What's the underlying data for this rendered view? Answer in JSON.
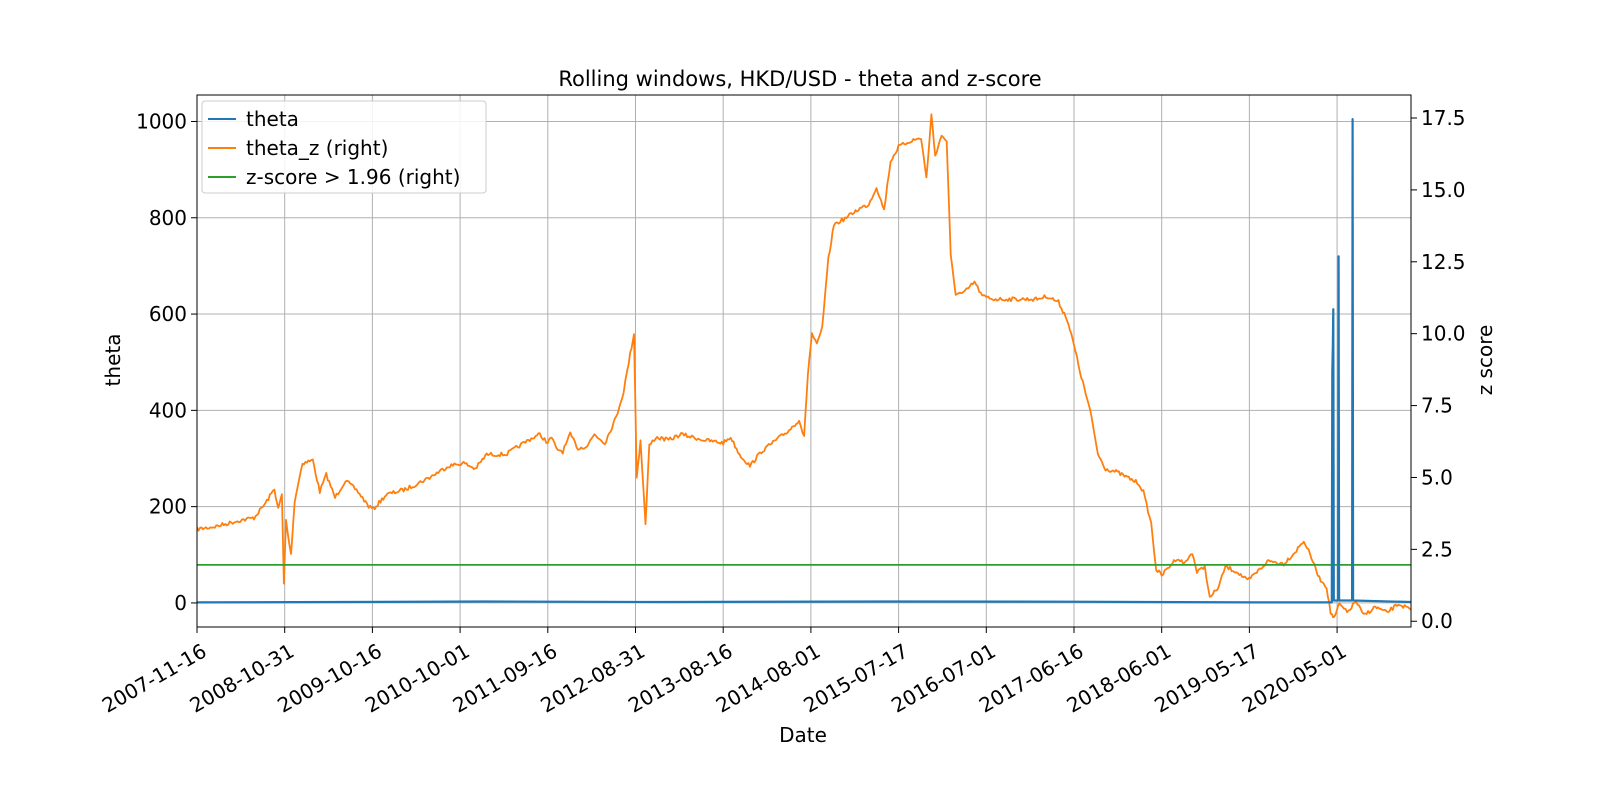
{
  "chart_data": {
    "type": "line",
    "title": "Rolling windows, HKD/USD - theta and z-score",
    "xlabel": "Date",
    "ylabel_left": "theta",
    "ylabel_right": "z score",
    "xlim": [
      "2007-11-16",
      "2021-02-20"
    ],
    "ylim_left": [
      -50,
      1055
    ],
    "ylim_right": [
      -0.2,
      18.3
    ],
    "x_ticks": [
      "2007-11-16",
      "2008-10-31",
      "2009-10-16",
      "2010-10-01",
      "2011-09-16",
      "2012-08-31",
      "2013-08-16",
      "2014-08-01",
      "2015-07-17",
      "2016-07-01",
      "2017-06-16",
      "2018-06-01",
      "2019-05-17",
      "2020-05-01"
    ],
    "y_ticks_left": [
      "0",
      "200",
      "400",
      "600",
      "800",
      "1000"
    ],
    "y_ticks_right": [
      "0.0",
      "2.5",
      "5.0",
      "7.5",
      "10.0",
      "12.5",
      "15.0",
      "17.5"
    ],
    "grid": true,
    "legend_position": "top-left",
    "colors": {
      "theta": "#1f77b4",
      "theta_z": "#ff7f0e",
      "threshold": "#2ca02c",
      "grid": "#b0b0b0"
    },
    "series": [
      {
        "name": "theta",
        "axis": "left",
        "points": [
          [
            "2007-11-16",
            1
          ],
          [
            "2009-06-01",
            2
          ],
          [
            "2011-01-01",
            3
          ],
          [
            "2013-01-01",
            2
          ],
          [
            "2015-06-01",
            3
          ],
          [
            "2017-06-01",
            2.5
          ],
          [
            "2019-06-01",
            1
          ],
          [
            "2020-04-10",
            1
          ],
          [
            "2020-04-12",
            480
          ],
          [
            "2020-04-14",
            530
          ],
          [
            "2020-04-16",
            610
          ],
          [
            "2020-04-18",
            5
          ],
          [
            "2020-05-05",
            5
          ],
          [
            "2020-05-07",
            720
          ],
          [
            "2020-05-09",
            5
          ],
          [
            "2020-06-30",
            5
          ],
          [
            "2020-07-02",
            1005
          ],
          [
            "2020-07-04",
            5
          ],
          [
            "2021-02-20",
            2
          ]
        ]
      },
      {
        "name": "theta_z (right)",
        "axis": "right",
        "points": [
          [
            "2007-11-16",
            3.2
          ],
          [
            "2008-02-01",
            3.3
          ],
          [
            "2008-05-01",
            3.5
          ],
          [
            "2008-07-01",
            3.6
          ],
          [
            "2008-08-15",
            4.1
          ],
          [
            "2008-09-20",
            4.6
          ],
          [
            "2008-10-05",
            3.9
          ],
          [
            "2008-10-20",
            4.4
          ],
          [
            "2008-10-28",
            1.3
          ],
          [
            "2008-11-05",
            3.5
          ],
          [
            "2008-11-25",
            2.3
          ],
          [
            "2008-12-10",
            4.2
          ],
          [
            "2009-01-10",
            5.5
          ],
          [
            "2009-02-20",
            5.6
          ],
          [
            "2009-03-20",
            4.5
          ],
          [
            "2009-04-15",
            5.1
          ],
          [
            "2009-05-20",
            4.3
          ],
          [
            "2009-07-01",
            4.9
          ],
          [
            "2009-08-20",
            4.5
          ],
          [
            "2009-10-01",
            4.0
          ],
          [
            "2009-10-20",
            3.9
          ],
          [
            "2009-12-10",
            4.4
          ],
          [
            "2010-03-01",
            4.6
          ],
          [
            "2010-06-01",
            5.0
          ],
          [
            "2010-08-15",
            5.4
          ],
          [
            "2010-10-15",
            5.5
          ],
          [
            "2010-12-01",
            5.3
          ],
          [
            "2011-01-15",
            5.8
          ],
          [
            "2011-04-01",
            5.8
          ],
          [
            "2011-07-01",
            6.3
          ],
          [
            "2011-08-15",
            6.5
          ],
          [
            "2011-09-16",
            6.2
          ],
          [
            "2011-10-01",
            6.4
          ],
          [
            "2011-10-20",
            6.0
          ],
          [
            "2011-11-15",
            5.9
          ],
          [
            "2011-12-15",
            6.5
          ],
          [
            "2012-01-15",
            6.0
          ],
          [
            "2012-02-20",
            6.1
          ],
          [
            "2012-03-20",
            6.5
          ],
          [
            "2012-05-01",
            6.2
          ],
          [
            "2012-06-15",
            7.1
          ],
          [
            "2012-07-15",
            8.0
          ],
          [
            "2012-08-10",
            9.3
          ],
          [
            "2012-08-25",
            10.0
          ],
          [
            "2012-09-05",
            5.0
          ],
          [
            "2012-09-20",
            6.3
          ],
          [
            "2012-10-10",
            3.4
          ],
          [
            "2012-10-25",
            6.1
          ],
          [
            "2012-11-20",
            6.4
          ],
          [
            "2013-01-10",
            6.3
          ],
          [
            "2013-03-01",
            6.5
          ],
          [
            "2013-06-01",
            6.3
          ],
          [
            "2013-08-16",
            6.2
          ],
          [
            "2013-09-15",
            6.4
          ],
          [
            "2013-10-20",
            5.8
          ],
          [
            "2013-12-01",
            5.4
          ],
          [
            "2014-01-15",
            5.9
          ],
          [
            "2014-03-15",
            6.3
          ],
          [
            "2014-05-01",
            6.6
          ],
          [
            "2014-06-15",
            7.0
          ],
          [
            "2014-07-05",
            6.4
          ],
          [
            "2014-07-20",
            8.6
          ],
          [
            "2014-08-05",
            10.0
          ],
          [
            "2014-08-25",
            9.6
          ],
          [
            "2014-09-15",
            10.2
          ],
          [
            "2014-10-10",
            12.6
          ],
          [
            "2014-11-01",
            13.8
          ],
          [
            "2014-12-15",
            14.0
          ],
          [
            "2015-02-01",
            14.3
          ],
          [
            "2015-03-20",
            14.5
          ],
          [
            "2015-04-20",
            15.1
          ],
          [
            "2015-05-20",
            14.3
          ],
          [
            "2015-06-15",
            16.0
          ],
          [
            "2015-07-17",
            16.5
          ],
          [
            "2015-09-01",
            16.7
          ],
          [
            "2015-10-15",
            16.8
          ],
          [
            "2015-11-05",
            15.4
          ],
          [
            "2015-11-25",
            17.6
          ],
          [
            "2015-12-10",
            16.2
          ],
          [
            "2016-01-05",
            16.9
          ],
          [
            "2016-01-25",
            16.7
          ],
          [
            "2016-02-10",
            12.7
          ],
          [
            "2016-03-01",
            11.4
          ],
          [
            "2016-04-01",
            11.4
          ],
          [
            "2016-05-15",
            11.8
          ],
          [
            "2016-06-15",
            11.3
          ],
          [
            "2016-08-01",
            11.2
          ],
          [
            "2016-11-01",
            11.2
          ],
          [
            "2017-01-15",
            11.2
          ],
          [
            "2017-03-01",
            11.3
          ],
          [
            "2017-04-15",
            11.1
          ],
          [
            "2017-05-20",
            10.5
          ],
          [
            "2017-06-16",
            9.6
          ],
          [
            "2017-07-15",
            8.5
          ],
          [
            "2017-08-20",
            7.3
          ],
          [
            "2017-09-20",
            5.8
          ],
          [
            "2017-10-20",
            5.3
          ],
          [
            "2017-12-01",
            5.2
          ],
          [
            "2018-01-15",
            5.0
          ],
          [
            "2018-03-01",
            4.8
          ],
          [
            "2018-03-20",
            4.5
          ],
          [
            "2018-04-20",
            3.4
          ],
          [
            "2018-05-10",
            1.8
          ],
          [
            "2018-06-01",
            1.6
          ],
          [
            "2018-07-01",
            1.9
          ],
          [
            "2018-08-01",
            2.2
          ],
          [
            "2018-09-01",
            2.0
          ],
          [
            "2018-10-01",
            2.4
          ],
          [
            "2018-10-20",
            1.7
          ],
          [
            "2018-11-20",
            1.9
          ],
          [
            "2018-12-10",
            0.8
          ],
          [
            "2019-01-15",
            1.2
          ],
          [
            "2019-02-10",
            1.9
          ],
          [
            "2019-04-01",
            1.7
          ],
          [
            "2019-05-10",
            1.4
          ],
          [
            "2019-06-15",
            1.7
          ],
          [
            "2019-08-01",
            2.1
          ],
          [
            "2019-10-01",
            2.0
          ],
          [
            "2019-11-15",
            2.4
          ],
          [
            "2019-12-20",
            2.8
          ],
          [
            "2020-01-20",
            2.2
          ],
          [
            "2020-02-20",
            1.5
          ],
          [
            "2020-03-20",
            1.2
          ],
          [
            "2020-04-05",
            0.3
          ],
          [
            "2020-04-20",
            0.1
          ],
          [
            "2020-05-10",
            0.6
          ],
          [
            "2020-06-10",
            0.3
          ],
          [
            "2020-07-15",
            0.7
          ],
          [
            "2020-08-15",
            0.2
          ],
          [
            "2020-10-01",
            0.5
          ],
          [
            "2020-11-15",
            0.3
          ],
          [
            "2021-01-01",
            0.6
          ],
          [
            "2021-02-20",
            0.4
          ]
        ]
      },
      {
        "name": "z-score > 1.96 (right)",
        "axis": "right",
        "points": [
          [
            "2007-11-16",
            1.96
          ],
          [
            "2021-02-20",
            1.96
          ]
        ]
      }
    ]
  }
}
